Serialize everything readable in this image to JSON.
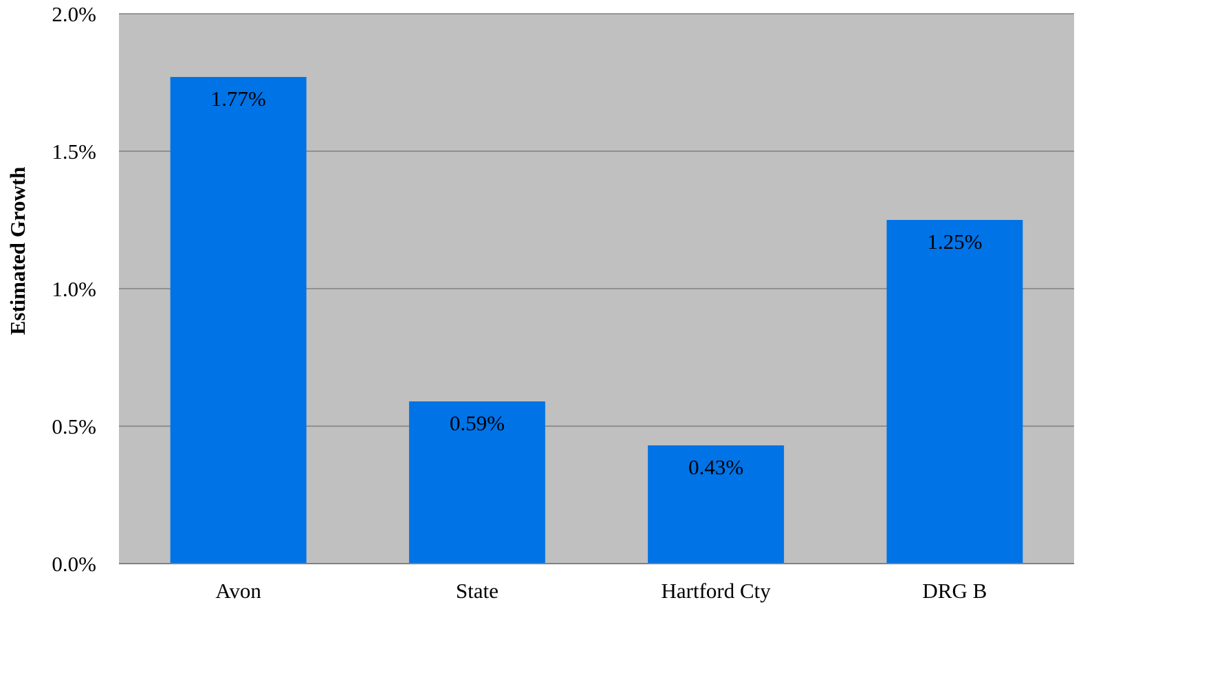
{
  "chart_data": {
    "type": "bar",
    "title": "",
    "xlabel": "",
    "ylabel": "Estimated Growth",
    "categories": [
      "Avon",
      "State",
      "Hartford Cty",
      "DRG B"
    ],
    "values": [
      1.77,
      0.59,
      0.43,
      1.25
    ],
    "data_labels": [
      "1.77%",
      "0.59%",
      "0.43%",
      "1.25%"
    ],
    "ylim": [
      0,
      2.0
    ],
    "y_ticks": [
      0,
      0.5,
      1.0,
      1.5,
      2.0
    ],
    "y_tick_labels": [
      "0.0%",
      "0.5%",
      "1.0%",
      "1.5%",
      "2.0%"
    ],
    "grid": true,
    "legend": "none",
    "colors": {
      "bar": "#0073E6",
      "plot_background": "#C0C0C0",
      "gridline": "#808080",
      "axis": "#808080"
    }
  }
}
